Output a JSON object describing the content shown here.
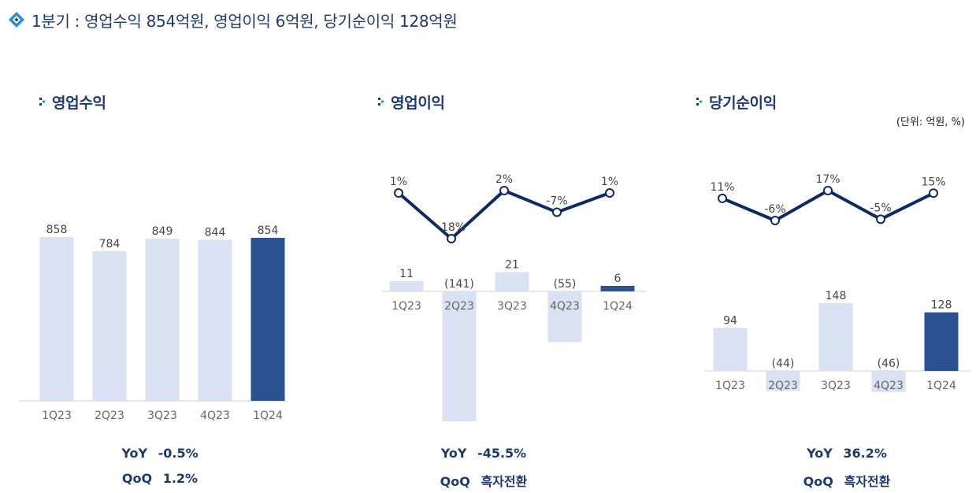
{
  "header": {
    "title": "1분기 : 영업수익  854억원, 영업이익 6억원, 당기순이익 128억원"
  },
  "unit_label": "(단위: 억원, %)",
  "colors": {
    "bar_light": "#d9e1f3",
    "bar_highlight": "#2c5191",
    "line": "#0d2a63",
    "title": "#1e3a6d"
  },
  "chart_data": [
    {
      "type": "bar",
      "title": "영업수익",
      "categories": [
        "1Q23",
        "2Q23",
        "3Q23",
        "4Q23",
        "1Q24"
      ],
      "values": [
        858,
        784,
        849,
        844,
        854
      ],
      "value_labels": [
        "858",
        "784",
        "849",
        "844",
        "854"
      ],
      "highlight_index": 4,
      "summary": {
        "yoy_label": "YoY",
        "yoy_value": "-0.5%",
        "qoq_label": "QoQ",
        "qoq_value": "1.2%"
      }
    },
    {
      "type": "bar",
      "title": "영업이익",
      "categories": [
        "1Q23",
        "2Q23",
        "3Q23",
        "4Q23",
        "1Q24"
      ],
      "values": [
        11,
        -141,
        21,
        -55,
        6
      ],
      "value_labels": [
        "11",
        "(141)",
        "21",
        "(55)",
        "6"
      ],
      "highlight_index": 4,
      "margin_series": {
        "type": "line",
        "values": [
          1,
          -18,
          2,
          -7,
          1
        ],
        "labels": [
          "1%",
          "-18%",
          "2%",
          "-7%",
          "1%"
        ]
      },
      "summary": {
        "yoy_label": "YoY",
        "yoy_value": "-45.5%",
        "qoq_label": "QoQ",
        "qoq_value": "흑자전환"
      }
    },
    {
      "type": "bar",
      "title": "당기순이익",
      "categories": [
        "1Q23",
        "2Q23",
        "3Q23",
        "4Q23",
        "1Q24"
      ],
      "values": [
        94,
        -44,
        148,
        -46,
        128
      ],
      "value_labels": [
        "94",
        "(44)",
        "148",
        "(46)",
        "128"
      ],
      "highlight_index": 4,
      "margin_series": {
        "type": "line",
        "values": [
          11,
          -6,
          17,
          -5,
          15
        ],
        "labels": [
          "11%",
          "-6%",
          "17%",
          "-5%",
          "15%"
        ]
      },
      "summary": {
        "yoy_label": "YoY",
        "yoy_value": "36.2%",
        "qoq_label": "QoQ",
        "qoq_value": "흑자전환"
      }
    }
  ]
}
